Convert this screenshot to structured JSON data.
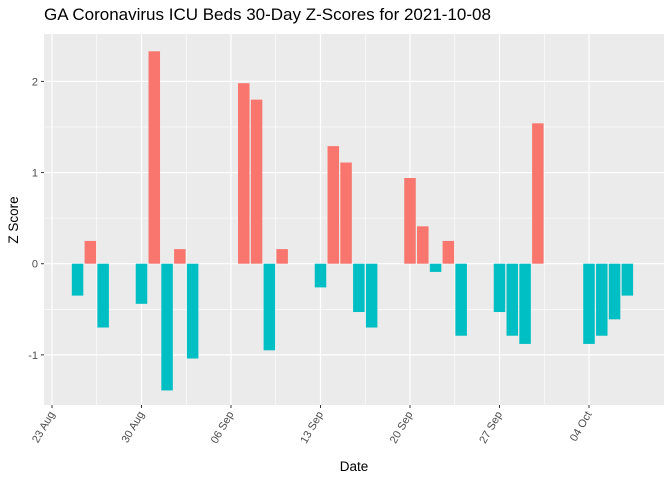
{
  "chart_data": {
    "type": "bar",
    "title": "GA Coronavirus ICU Beds 30-Day Z-Scores for 2021-10-08",
    "xlabel": "Date",
    "ylabel": "Z Score",
    "ylim": [
      -1.55,
      2.52
    ],
    "y_ticks": [
      -1,
      0,
      1,
      2
    ],
    "grid": true,
    "legend": "none",
    "colors": {
      "positive": "#F8766D",
      "negative": "#00BFC4",
      "panel": "#EBEBEB",
      "grid": "#FFFFFF",
      "axis_text": "#4D4D4D"
    },
    "x_ticks": [
      {
        "date": "2021-08-23",
        "label": "23 Aug"
      },
      {
        "date": "2021-08-30",
        "label": "30 Aug"
      },
      {
        "date": "2021-09-06",
        "label": "06 Sep"
      },
      {
        "date": "2021-09-13",
        "label": "13 Sep"
      },
      {
        "date": "2021-09-20",
        "label": "20 Sep"
      },
      {
        "date": "2021-09-27",
        "label": "27 Sep"
      },
      {
        "date": "2021-10-04",
        "label": "04 Oct"
      }
    ],
    "x": [
      "2021-08-25",
      "2021-08-26",
      "2021-08-27",
      "2021-08-30",
      "2021-08-31",
      "2021-09-01",
      "2021-09-02",
      "2021-09-03",
      "2021-09-07",
      "2021-09-08",
      "2021-09-09",
      "2021-09-10",
      "2021-09-13",
      "2021-09-14",
      "2021-09-15",
      "2021-09-16",
      "2021-09-17",
      "2021-09-20",
      "2021-09-21",
      "2021-09-22",
      "2021-09-23",
      "2021-09-24",
      "2021-09-27",
      "2021-09-28",
      "2021-09-29",
      "2021-09-30",
      "2021-10-04",
      "2021-10-05",
      "2021-10-06",
      "2021-10-07"
    ],
    "values": [
      -0.35,
      0.25,
      -0.7,
      -0.44,
      2.33,
      -1.39,
      0.16,
      -1.04,
      1.98,
      1.8,
      -0.95,
      0.16,
      -0.26,
      1.29,
      1.11,
      -0.53,
      -0.7,
      0.94,
      0.41,
      -0.09,
      0.25,
      -0.79,
      -0.53,
      -0.79,
      -0.88,
      1.54,
      -0.88,
      -0.79,
      -0.61,
      -0.35
    ]
  }
}
